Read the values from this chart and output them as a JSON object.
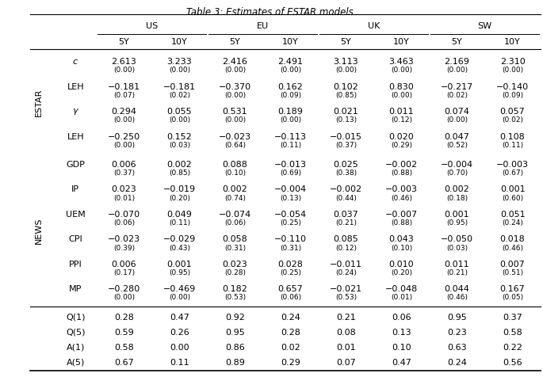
{
  "title": "Table 3: Estimates of ESTAR models.",
  "col_groups": [
    "US",
    "EU",
    "UK",
    "SW"
  ],
  "sub_cols": [
    "5Y",
    "10Y",
    "5Y",
    "10Y",
    "5Y",
    "10Y",
    "5Y",
    "10Y"
  ],
  "data": {
    "c": [
      [
        "2.613",
        "3.233"
      ],
      [
        "2.416",
        "2.491"
      ],
      [
        "3.113",
        "3.463"
      ],
      [
        "2.169",
        "2.310"
      ]
    ],
    "c_p": [
      [
        "(0.00)",
        "(0.00)"
      ],
      [
        "(0.00)",
        "(0.00)"
      ],
      [
        "(0.00)",
        "(0.00)"
      ],
      [
        "(0.00)",
        "(0.00)"
      ]
    ],
    "LEH1": [
      [
        "−0.181",
        "−0.181"
      ],
      [
        "−0.370",
        "0.162"
      ],
      [
        "0.102",
        "0.830"
      ],
      [
        "−0.217",
        "−0.140"
      ]
    ],
    "LEH1_p": [
      [
        "(0.07)",
        "(0.02)"
      ],
      [
        "(0.00)",
        "(0.09)"
      ],
      [
        "(0.85)",
        "(0.00)"
      ],
      [
        "(0.02)",
        "(0.09)"
      ]
    ],
    "gamma": [
      [
        "0.294",
        "0.055"
      ],
      [
        "0.531",
        "0.189"
      ],
      [
        "0.021",
        "0.011"
      ],
      [
        "0.074",
        "0.057"
      ]
    ],
    "gamma_p": [
      [
        "(0.00)",
        "(0.00)"
      ],
      [
        "(0.00)",
        "(0.00)"
      ],
      [
        "(0.13)",
        "(0.12)"
      ],
      [
        "(0.00)",
        "(0.02)"
      ]
    ],
    "LEH2": [
      [
        "−0.250",
        "0.152"
      ],
      [
        "−0.023",
        "−0.113"
      ],
      [
        "−0.015",
        "0.020"
      ],
      [
        "0.047",
        "0.108"
      ]
    ],
    "LEH2_p": [
      [
        "(0.00)",
        "(0.03)"
      ],
      [
        "(0.64)",
        "(0.11)"
      ],
      [
        "(0.37)",
        "(0.29)"
      ],
      [
        "(0.52)",
        "(0.11)"
      ]
    ],
    "GDP": [
      [
        "0.006",
        "0.002"
      ],
      [
        "0.088",
        "−0.013"
      ],
      [
        "0.025",
        "−0.002"
      ],
      [
        "−0.004",
        "−0.003"
      ]
    ],
    "GDP_p": [
      [
        "(0.37)",
        "(0.85)"
      ],
      [
        "(0.10)",
        "(0.69)"
      ],
      [
        "(0.38)",
        "(0.88)"
      ],
      [
        "(0.70)",
        "(0.67)"
      ]
    ],
    "IP": [
      [
        "0.023",
        "−0.019"
      ],
      [
        "0.002",
        "−0.004"
      ],
      [
        "−0.002",
        "−0.003"
      ],
      [
        "0.002",
        "0.001"
      ]
    ],
    "IP_p": [
      [
        "(0.01)",
        "(0.20)"
      ],
      [
        "(0.74)",
        "(0.13)"
      ],
      [
        "(0.44)",
        "(0.46)"
      ],
      [
        "(0.18)",
        "(0.60)"
      ]
    ],
    "UEM": [
      [
        "−0.070",
        "0.049"
      ],
      [
        "−0.074",
        "−0.054"
      ],
      [
        "0.037",
        "−0.007"
      ],
      [
        "0.001",
        "0.051"
      ]
    ],
    "UEM_p": [
      [
        "(0.06)",
        "(0.11)"
      ],
      [
        "(0.06)",
        "(0.25)"
      ],
      [
        "(0.21)",
        "(0.88)"
      ],
      [
        "(0.95)",
        "(0.24)"
      ]
    ],
    "CPI": [
      [
        "−0.023",
        "−0.029"
      ],
      [
        "0.058",
        "−0.110"
      ],
      [
        "0.085",
        "0.043"
      ],
      [
        "−0.050",
        "0.018"
      ]
    ],
    "CPI_p": [
      [
        "(0.39)",
        "(0.43)"
      ],
      [
        "(0.31)",
        "(0.31)"
      ],
      [
        "(0.12)",
        "(0.10)"
      ],
      [
        "(0.03)",
        "(0.46)"
      ]
    ],
    "PPI": [
      [
        "0.006",
        "0.001"
      ],
      [
        "0.023",
        "0.028"
      ],
      [
        "−0.011",
        "0.010"
      ],
      [
        "0.011",
        "0.007"
      ]
    ],
    "PPI_p": [
      [
        "(0.17)",
        "(0.95)"
      ],
      [
        "(0.28)",
        "(0.25)"
      ],
      [
        "(0.24)",
        "(0.20)"
      ],
      [
        "(0.21)",
        "(0.51)"
      ]
    ],
    "MP": [
      [
        "−0.280",
        "−0.469"
      ],
      [
        "0.182",
        "0.657"
      ],
      [
        "−0.021",
        "−0.048"
      ],
      [
        "0.044",
        "0.167"
      ]
    ],
    "MP_p": [
      [
        "(0.00)",
        "(0.00)"
      ],
      [
        "(0.53)",
        "(0.06)"
      ],
      [
        "(0.53)",
        "(0.01)"
      ],
      [
        "(0.46)",
        "(0.05)"
      ]
    ],
    "Q1": [
      [
        "0.28",
        "0.47"
      ],
      [
        "0.92",
        "0.24"
      ],
      [
        "0.21",
        "0.06"
      ],
      [
        "0.95",
        "0.37"
      ]
    ],
    "Q5": [
      [
        "0.59",
        "0.26"
      ],
      [
        "0.95",
        "0.28"
      ],
      [
        "0.08",
        "0.13"
      ],
      [
        "0.23",
        "0.58"
      ]
    ],
    "A1": [
      [
        "0.58",
        "0.00"
      ],
      [
        "0.86",
        "0.02"
      ],
      [
        "0.01",
        "0.10"
      ],
      [
        "0.63",
        "0.22"
      ]
    ],
    "A5": [
      [
        "0.67",
        "0.11"
      ],
      [
        "0.89",
        "0.29"
      ],
      [
        "0.07",
        "0.47"
      ],
      [
        "0.24",
        "0.56"
      ]
    ]
  },
  "fs_main": 8.0,
  "fs_small": 6.5,
  "fs_title": 8.5,
  "fs_side": 8.0
}
